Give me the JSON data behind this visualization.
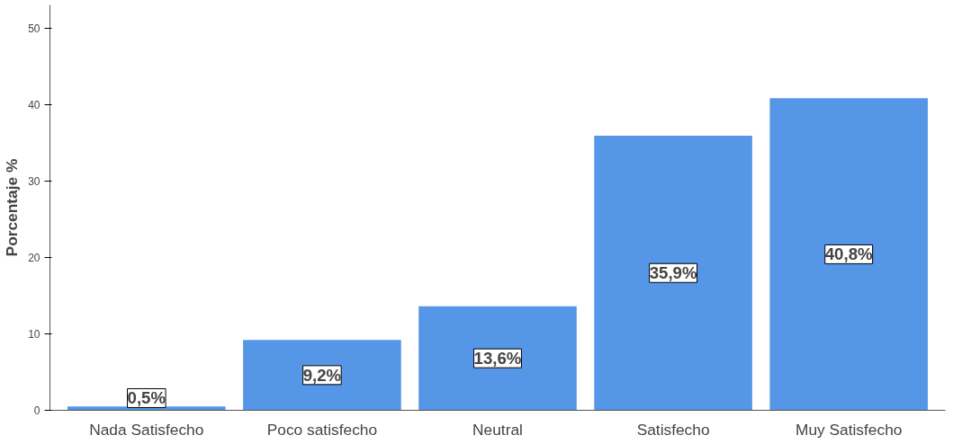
{
  "chart_data": {
    "type": "bar",
    "ylabel": "Porcentaje %",
    "categories": [
      "Nada Satisfecho",
      "Poco satisfecho",
      "Neutral",
      "Satisfecho",
      "Muy Satisfecho"
    ],
    "values": [
      0.5,
      9.2,
      13.6,
      35.9,
      40.8
    ],
    "value_labels": [
      "0,5%",
      "9,2%",
      "13,6%",
      "35,9%",
      "40,8%"
    ],
    "color": "#5596e6",
    "ylim": [
      0,
      53
    ],
    "yticks": [
      0,
      10,
      20,
      30,
      40,
      50
    ],
    "grid": false
  }
}
